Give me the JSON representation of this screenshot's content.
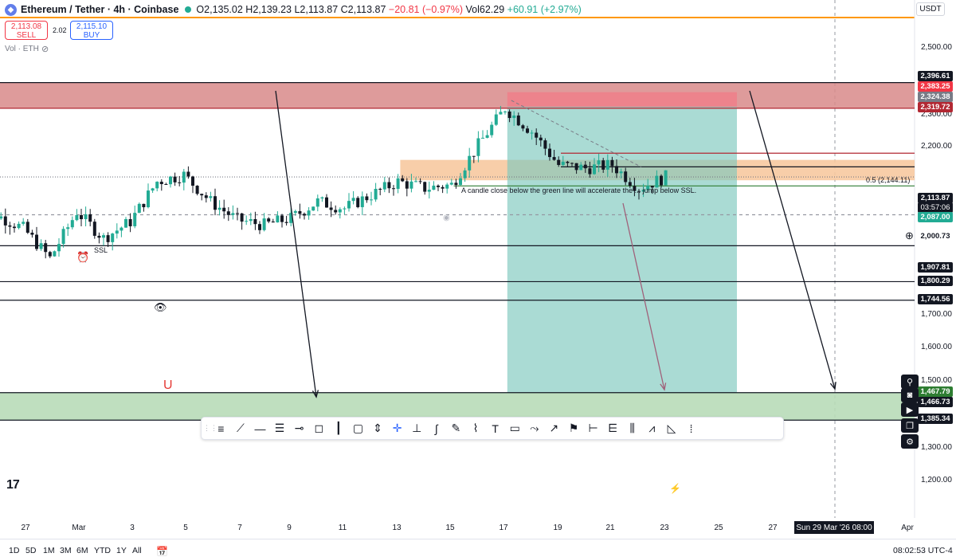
{
  "header": {
    "symbol": "Ethereum / Tether · 4h · Coinbase",
    "open": "O2,135.02",
    "high": "H2,139.23",
    "low": "L2,113.87",
    "close": "C2,113.87",
    "change": "−20.81 (−0.97%)",
    "vol_label": "Vol",
    "vol_value": "62.29",
    "vol_change": "+60.91 (+2.97%)"
  },
  "trade": {
    "sell_price": "2,113.08",
    "sell_label": "SELL",
    "spread": "2.02",
    "buy_price": "2,115.10",
    "buy_label": "BUY"
  },
  "volume_legend": "Vol · ETH",
  "currency": "USDT",
  "price_axis": [
    "2,500.00",
    "2,300.00",
    "2,200.00",
    "1,700.00",
    "1,600.00",
    "1,500.00",
    "1,300.00",
    "1,200.00"
  ],
  "price_tags": {
    "t1": "2,396.61",
    "t2": "2,383.25",
    "t3": "2,324.38",
    "t4": "2,319.72",
    "t5": "2,113.87",
    "t6": "03:57:06",
    "t7": "2,087.00",
    "t8": "2,000.73",
    "t9": "1,907.81",
    "t10": "1,800.29",
    "t11": "1,744.56",
    "t12": "1,467.79",
    "t13": "1,466.73",
    "t14": "1,385.34"
  },
  "time_axis": [
    "27",
    "Mar",
    "3",
    "5",
    "7",
    "9",
    "11",
    "13",
    "15",
    "17",
    "19",
    "21",
    "23",
    "25",
    "27",
    "Apr"
  ],
  "time_cursor": "Sun 29 Mar '26   08:00",
  "timeframes": [
    "1D",
    "5D",
    "1M",
    "3M",
    "6M",
    "YTD",
    "1Y",
    "All"
  ],
  "clock": "08:02:53 UTC-4",
  "annotations": {
    "note": "A candle close below the green line will accelerate the ... jump below SSL.",
    "fib": "0.5 (2,144.11)",
    "ssl": "SSL"
  },
  "colors": {
    "bull": "#22ab94",
    "bear": "#131722",
    "supply_zone": "#d88a8a",
    "demand_zone": "#b8dcb8",
    "tp_zone": "#7cc7bd",
    "sl_zone": "#f07f8a",
    "fvg_zone": "#f7c9a0"
  },
  "chart_data": {
    "type": "candlestick",
    "title": "Ethereum / Tether · 4h · Coinbase",
    "x_range": [
      "Feb 25",
      "Apr 1"
    ],
    "ylim": [
      1150,
      2600
    ],
    "close_last": 2113.87,
    "key_levels": {
      "supply_zone": [
        2319.72,
        2396.61
      ],
      "demand_zone": [
        1385.34,
        1467.79
      ],
      "fib_0.5": 2144.11,
      "green_line": 2087.0,
      "ssl": 1907.81,
      "support_1": 1800.29,
      "support_2": 1744.56,
      "target": 1466.73
    },
    "close_path": [
      {
        "x": "Feb 25",
        "y": 2060
      },
      {
        "x": "Feb 26",
        "y": 2000
      },
      {
        "x": "Feb 27",
        "y": 1960
      },
      {
        "x": "Feb 28",
        "y": 1870
      },
      {
        "x": "Mar 1",
        "y": 2010
      },
      {
        "x": "Mar 2",
        "y": 1930
      },
      {
        "x": "Mar 3",
        "y": 1980
      },
      {
        "x": "Mar 4",
        "y": 2100
      },
      {
        "x": "Mar 5",
        "y": 2120
      },
      {
        "x": "Mar 6",
        "y": 2040
      },
      {
        "x": "Mar 7",
        "y": 1985
      },
      {
        "x": "Mar 8",
        "y": 1970
      },
      {
        "x": "Mar 9",
        "y": 1990
      },
      {
        "x": "Mar 10",
        "y": 2040
      },
      {
        "x": "Mar 11",
        "y": 2020
      },
      {
        "x": "Mar 12",
        "y": 2060
      },
      {
        "x": "Mar 13",
        "y": 2100
      },
      {
        "x": "Mar 14",
        "y": 2080
      },
      {
        "x": "Mar 15",
        "y": 2090
      },
      {
        "x": "Mar 16",
        "y": 2210
      },
      {
        "x": "Mar 17",
        "y": 2320
      },
      {
        "x": "Mar 18",
        "y": 2250
      },
      {
        "x": "Mar 19",
        "y": 2150
      },
      {
        "x": "Mar 20",
        "y": 2140
      },
      {
        "x": "Mar 21",
        "y": 2150
      },
      {
        "x": "Mar 22",
        "y": 2080
      },
      {
        "x": "Mar 23",
        "y": 2113.87
      }
    ]
  }
}
